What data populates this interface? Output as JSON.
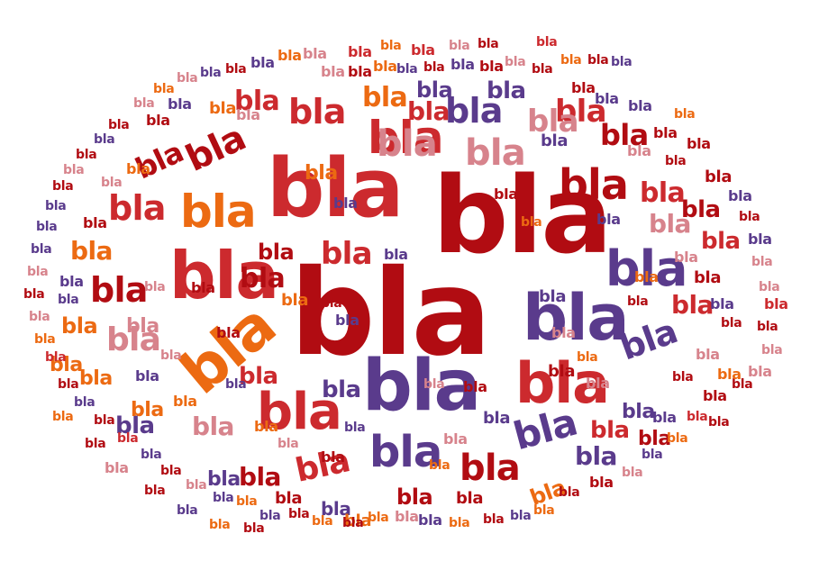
{
  "word": "bla",
  "palette": {
    "dark_red": "#b10c12",
    "red": "#cc2a2e",
    "purple": "#5a3b8c",
    "orange": "#ec6a12",
    "pink": "#d7838c"
  },
  "words": [
    {
      "text": "bla",
      "color": "dark_red"
    },
    {
      "text": "bla",
      "color": "dark_red"
    },
    {
      "text": "bla",
      "color": "red"
    },
    {
      "text": "bla",
      "color": "purple"
    },
    {
      "text": "bla",
      "color": "purple"
    },
    {
      "text": "bla",
      "color": "red"
    },
    {
      "text": "bla",
      "color": "orange"
    },
    {
      "text": "bla",
      "color": "red"
    },
    {
      "text": "bla",
      "color": "red"
    },
    {
      "text": "bla",
      "color": "purple"
    },
    {
      "text": "bla",
      "color": "red"
    },
    {
      "text": "bla",
      "color": "dark_red"
    },
    {
      "text": "bla",
      "color": "orange"
    },
    {
      "text": "bla",
      "color": "purple"
    },
    {
      "text": "bla",
      "color": "pink"
    },
    {
      "text": "bla",
      "color": "pink"
    },
    {
      "text": "bla",
      "color": "dark_red"
    },
    {
      "text": "bla",
      "color": "red"
    },
    {
      "text": "bla",
      "color": "purple"
    },
    {
      "text": "bla",
      "color": "purple"
    },
    {
      "text": "bla",
      "color": "dark_red"
    },
    {
      "text": "bla",
      "color": "red"
    },
    {
      "text": "bla",
      "color": "dark_red"
    },
    {
      "text": "bla",
      "color": "red"
    },
    {
      "text": "bla",
      "color": "purple"
    },
    {
      "text": "bla",
      "color": "red"
    },
    {
      "text": "bla",
      "color": "pink"
    },
    {
      "text": "bla",
      "color": "red"
    },
    {
      "text": "bla",
      "color": "dark_red"
    },
    {
      "text": "bla",
      "color": "pink"
    },
    {
      "text": "bla",
      "color": "dark_red"
    },
    {
      "text": "bla",
      "color": "red"
    },
    {
      "text": "bla",
      "color": "orange"
    },
    {
      "text": "bla",
      "color": "red"
    },
    {
      "text": "bla",
      "color": "dark_red"
    },
    {
      "text": "bla",
      "color": "purple"
    },
    {
      "text": "bla",
      "color": "dark_red"
    },
    {
      "text": "bla",
      "color": "purple"
    },
    {
      "text": "bla",
      "color": "red"
    },
    {
      "text": "bla",
      "color": "dark_red"
    },
    {
      "text": "bla",
      "color": "red"
    },
    {
      "text": "bla",
      "color": "red"
    },
    {
      "text": "bla",
      "color": "pink"
    },
    {
      "text": "bla",
      "color": "purple"
    },
    {
      "text": "bla",
      "color": "red"
    },
    {
      "text": "bla",
      "color": "red"
    },
    {
      "text": "bla",
      "color": "purple"
    },
    {
      "text": "bla",
      "color": "dark_red"
    },
    {
      "text": "bla",
      "color": "pink"
    },
    {
      "text": "bla",
      "color": "purple"
    },
    {
      "text": "bla",
      "color": "orange"
    },
    {
      "text": "bla",
      "color": "purple"
    },
    {
      "text": "bla",
      "color": "dark_red"
    },
    {
      "text": "bla",
      "color": "dark_red"
    },
    {
      "text": "bla",
      "color": "purple"
    },
    {
      "text": "bla",
      "color": "dark_red"
    },
    {
      "text": "bla",
      "color": "dark_red"
    },
    {
      "text": "bla",
      "color": "purple"
    },
    {
      "text": "bla",
      "color": "orange"
    },
    {
      "text": "bla",
      "color": "purple"
    },
    {
      "text": "bla",
      "color": "purple"
    },
    {
      "text": "bla",
      "color": "orange"
    },
    {
      "text": "bla",
      "color": "orange"
    },
    {
      "text": "bla",
      "color": "orange"
    },
    {
      "text": "bla",
      "color": "orange"
    },
    {
      "text": "bla",
      "color": "orange"
    },
    {
      "text": "bla",
      "color": "pink"
    },
    {
      "text": "bla",
      "color": "purple"
    },
    {
      "text": "bla",
      "color": "orange"
    },
    {
      "text": "bla",
      "color": "red"
    },
    {
      "text": "bla",
      "color": "orange"
    },
    {
      "text": "bla",
      "color": "red"
    },
    {
      "text": "bla",
      "color": "pink"
    },
    {
      "text": "bla",
      "color": "dark_red"
    },
    {
      "text": "bla",
      "color": "red"
    },
    {
      "text": "bla",
      "color": "orange"
    },
    {
      "text": "bla",
      "color": "dark_red"
    },
    {
      "text": "bla",
      "color": "purple"
    },
    {
      "text": "bla",
      "color": "dark_red"
    },
    {
      "text": "bla",
      "color": "purple"
    },
    {
      "text": "bla",
      "color": "purple"
    },
    {
      "text": "bla",
      "color": "dark_red"
    },
    {
      "text": "bla",
      "color": "dark_red"
    },
    {
      "text": "bla",
      "color": "dark_red"
    },
    {
      "text": "bla",
      "color": "purple"
    },
    {
      "text": "bla",
      "color": "dark_red"
    },
    {
      "text": "bla",
      "color": "purple"
    },
    {
      "text": "bla",
      "color": "pink"
    },
    {
      "text": "bla",
      "color": "pink"
    },
    {
      "text": "bla",
      "color": "red"
    },
    {
      "text": "bla",
      "color": "dark_red"
    },
    {
      "text": "bla",
      "color": "pink"
    },
    {
      "text": "bla",
      "color": "pink"
    },
    {
      "text": "bla",
      "color": "dark_red"
    },
    {
      "text": "bla",
      "color": "dark_red"
    },
    {
      "text": "bla",
      "color": "red"
    },
    {
      "text": "bla",
      "color": "orange"
    },
    {
      "text": "bla",
      "color": "purple"
    },
    {
      "text": "bla",
      "color": "pink"
    },
    {
      "text": "bla",
      "color": "dark_red"
    },
    {
      "text": "bla",
      "color": "dark_red"
    },
    {
      "text": "bla",
      "color": "orange"
    },
    {
      "text": "bla",
      "color": "purple"
    },
    {
      "text": "bla",
      "color": "dark_red"
    },
    {
      "text": "bla",
      "color": "orange"
    },
    {
      "text": "bla",
      "color": "purple"
    },
    {
      "text": "bla",
      "color": "pink"
    },
    {
      "text": "bla",
      "color": "orange"
    },
    {
      "text": "bla",
      "color": "dark_red"
    },
    {
      "text": "bla",
      "color": "orange"
    },
    {
      "text": "bla",
      "color": "dark_red"
    },
    {
      "text": "bla",
      "color": "purple"
    },
    {
      "text": "bla",
      "color": "orange"
    },
    {
      "text": "bla",
      "color": "purple"
    },
    {
      "text": "bla",
      "color": "pink"
    },
    {
      "text": "bla",
      "color": "dark_red"
    },
    {
      "text": "bla",
      "color": "purple"
    },
    {
      "text": "bla",
      "color": "red"
    },
    {
      "text": "bla",
      "color": "dark_red"
    },
    {
      "text": "bla",
      "color": "purple"
    },
    {
      "text": "bla",
      "color": "dark_red"
    },
    {
      "text": "bla",
      "color": "red"
    },
    {
      "text": "bla",
      "color": "orange"
    },
    {
      "text": "bla",
      "color": "pink"
    },
    {
      "text": "bla",
      "color": "dark_red"
    },
    {
      "text": "bla",
      "color": "pink"
    },
    {
      "text": "bla",
      "color": "purple"
    },
    {
      "text": "bla",
      "color": "purple"
    },
    {
      "text": "bla",
      "color": "purple"
    },
    {
      "text": "bla",
      "color": "dark_red"
    },
    {
      "text": "bla",
      "color": "pink"
    },
    {
      "text": "bla",
      "color": "dark_red"
    },
    {
      "text": "bla",
      "color": "purple"
    },
    {
      "text": "bla",
      "color": "dark_red"
    },
    {
      "text": "bla",
      "color": "pink"
    },
    {
      "text": "bla",
      "color": "orange"
    },
    {
      "text": "bla",
      "color": "pink"
    },
    {
      "text": "bla",
      "color": "purple"
    },
    {
      "text": "bla",
      "color": "dark_red"
    },
    {
      "text": "bla",
      "color": "purple"
    },
    {
      "text": "bla",
      "color": "orange"
    },
    {
      "text": "bla",
      "color": "pink"
    },
    {
      "text": "bla",
      "color": "pink"
    },
    {
      "text": "bla",
      "color": "dark_red"
    },
    {
      "text": "bla",
      "color": "orange"
    },
    {
      "text": "bla",
      "color": "purple"
    },
    {
      "text": "bla",
      "color": "dark_red"
    },
    {
      "text": "bla",
      "color": "purple"
    },
    {
      "text": "bla",
      "color": "dark_red"
    },
    {
      "text": "bla",
      "color": "pink"
    },
    {
      "text": "bla",
      "color": "dark_red"
    },
    {
      "text": "bla",
      "color": "pink"
    },
    {
      "text": "bla",
      "color": "orange"
    },
    {
      "text": "bla",
      "color": "purple"
    },
    {
      "text": "bla",
      "color": "dark_red"
    },
    {
      "text": "bla",
      "color": "orange"
    },
    {
      "text": "bla",
      "color": "pink"
    },
    {
      "text": "bla",
      "color": "dark_red"
    },
    {
      "text": "bla",
      "color": "purple"
    },
    {
      "text": "bla",
      "color": "purple"
    },
    {
      "text": "bla",
      "color": "orange"
    },
    {
      "text": "bla",
      "color": "dark_red"
    },
    {
      "text": "bla",
      "color": "pink"
    },
    {
      "text": "bla",
      "color": "dark_red"
    },
    {
      "text": "bla",
      "color": "purple"
    },
    {
      "text": "bla",
      "color": "orange"
    },
    {
      "text": "bla",
      "color": "dark_red"
    },
    {
      "text": "bla",
      "color": "pink"
    },
    {
      "text": "bla",
      "color": "dark_red"
    },
    {
      "text": "bla",
      "color": "orange"
    },
    {
      "text": "bla",
      "color": "pink"
    },
    {
      "text": "bla",
      "color": "dark_red"
    },
    {
      "text": "bla",
      "color": "purple"
    },
    {
      "text": "bla",
      "color": "dark_red"
    },
    {
      "text": "bla",
      "color": "pink"
    },
    {
      "text": "bla",
      "color": "dark_red"
    },
    {
      "text": "bla",
      "color": "orange"
    },
    {
      "text": "bla",
      "color": "purple"
    },
    {
      "text": "bla",
      "color": "dark_red"
    },
    {
      "text": "bla",
      "color": "pink"
    },
    {
      "text": "bla",
      "color": "dark_red"
    },
    {
      "text": "bla",
      "color": "orange"
    },
    {
      "text": "bla",
      "color": "purple"
    },
    {
      "text": "bla",
      "color": "dark_red"
    },
    {
      "text": "bla",
      "color": "pink"
    },
    {
      "text": "bla",
      "color": "dark_red"
    },
    {
      "text": "bla",
      "color": "purple"
    },
    {
      "text": "bla",
      "color": "orange"
    },
    {
      "text": "bla",
      "color": "pink"
    },
    {
      "text": "bla",
      "color": "purple"
    },
    {
      "text": "bla",
      "color": "pink"
    },
    {
      "text": "bla",
      "color": "dark_red"
    },
    {
      "text": "bla",
      "color": "orange"
    },
    {
      "text": "bla",
      "color": "purple"
    },
    {
      "text": "bla",
      "color": "dark_red"
    },
    {
      "text": "bla",
      "color": "orange"
    },
    {
      "text": "bla",
      "color": "purple"
    },
    {
      "text": "bla",
      "color": "dark_red"
    },
    {
      "text": "bla",
      "color": "pink"
    },
    {
      "text": "bla",
      "color": "orange"
    },
    {
      "text": "bla",
      "color": "purple"
    },
    {
      "text": "bla",
      "color": "dark_red"
    },
    {
      "text": "bla",
      "color": "orange"
    },
    {
      "text": "bla",
      "color": "pink"
    },
    {
      "text": "bla",
      "color": "purple"
    },
    {
      "text": "bla",
      "color": "dark_red"
    },
    {
      "text": "bla",
      "color": "pink"
    },
    {
      "text": "bla",
      "color": "orange"
    }
  ]
}
